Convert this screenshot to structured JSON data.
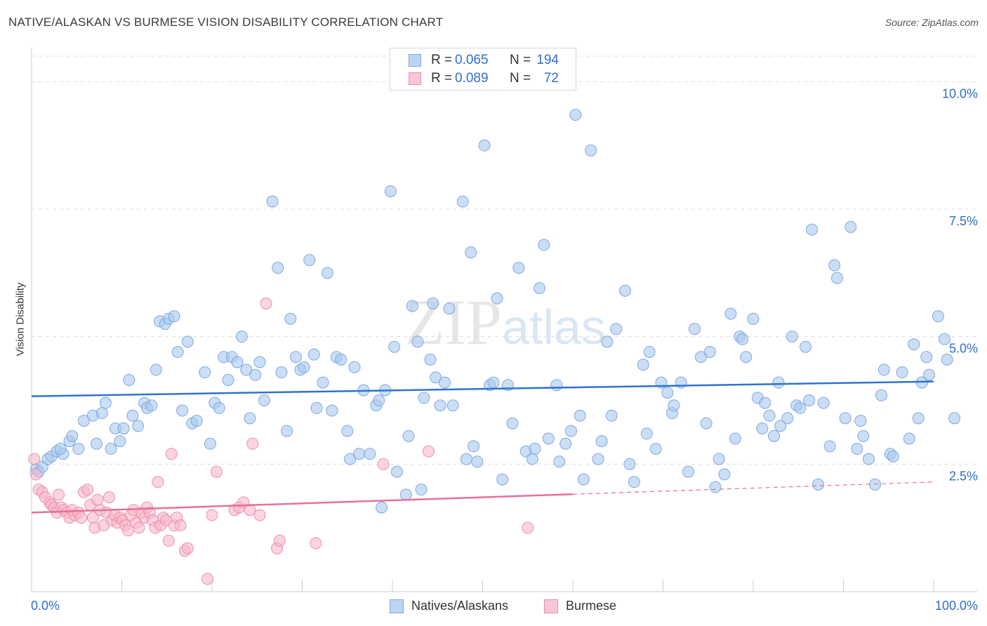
{
  "chart_data": {
    "type": "scatter",
    "title": "NATIVE/ALASKAN VS BURMESE VISION DISABILITY CORRELATION CHART",
    "source": "Source: ZipAtlas.com",
    "xlabel": "",
    "ylabel": "Vision Disability",
    "xlim": [
      0,
      100
    ],
    "ylim": [
      0,
      10.5
    ],
    "x_tick_labels": [
      "0.0%",
      "100.0%"
    ],
    "y_ticks": [
      2.5,
      5.0,
      7.5,
      10.0
    ],
    "y_tick_labels": [
      "2.5%",
      "5.0%",
      "7.5%",
      "10.0%"
    ],
    "grid": true,
    "watermark": "ZIPatlas",
    "colors": {
      "native_fill": "#a9c8ef",
      "native_stroke": "#7fa9df",
      "native_line": "#2f73cc",
      "burmese_fill": "#f6b7ca",
      "burmese_stroke": "#ec90ad",
      "burmese_line": "#e8709a",
      "value_text": "#2f6fc9",
      "grid": "#dcdcdc",
      "axis": "#cccccc"
    },
    "legend": [
      {
        "r_label": "R =",
        "r_value": "0.065",
        "n_label": "N =",
        "n_value": "194"
      },
      {
        "r_label": "R =",
        "r_value": "0.089",
        "n_label": "N =",
        "n_value": "72"
      }
    ],
    "series": [
      {
        "name": "Natives/Alaskans",
        "trend": {
          "x": [
            0,
            100
          ],
          "y": [
            3.83,
            4.12
          ],
          "dashed_from": null
        },
        "points": [
          [
            0.5,
            2.4
          ],
          [
            0.8,
            2.35
          ],
          [
            1.2,
            2.45
          ],
          [
            1.8,
            2.6
          ],
          [
            2.2,
            2.65
          ],
          [
            2.8,
            2.75
          ],
          [
            3.5,
            2.7
          ],
          [
            3.2,
            2.8
          ],
          [
            4.2,
            2.95
          ],
          [
            4.5,
            3.05
          ],
          [
            5.2,
            2.8
          ],
          [
            5.8,
            3.35
          ],
          [
            6.8,
            3.45
          ],
          [
            7.2,
            2.9
          ],
          [
            7.8,
            3.5
          ],
          [
            8.2,
            3.7
          ],
          [
            8.8,
            2.8
          ],
          [
            9.3,
            3.2
          ],
          [
            9.8,
            2.95
          ],
          [
            10.2,
            3.2
          ],
          [
            10.8,
            4.15
          ],
          [
            11.2,
            3.45
          ],
          [
            11.8,
            3.25
          ],
          [
            12.5,
            3.7
          ],
          [
            12.8,
            3.6
          ],
          [
            13.3,
            3.65
          ],
          [
            13.8,
            4.35
          ],
          [
            14.2,
            5.3
          ],
          [
            14.8,
            5.25
          ],
          [
            15.2,
            5.35
          ],
          [
            15.8,
            5.4
          ],
          [
            16.2,
            4.7
          ],
          [
            16.7,
            3.55
          ],
          [
            17.3,
            4.9
          ],
          [
            17.8,
            3.3
          ],
          [
            18.3,
            3.35
          ],
          [
            19.2,
            4.3
          ],
          [
            19.8,
            2.9
          ],
          [
            20.3,
            3.7
          ],
          [
            20.8,
            3.6
          ],
          [
            21.3,
            4.6
          ],
          [
            21.8,
            4.15
          ],
          [
            22.2,
            4.6
          ],
          [
            22.8,
            4.5
          ],
          [
            23.3,
            5.0
          ],
          [
            23.8,
            4.35
          ],
          [
            24.2,
            3.4
          ],
          [
            24.8,
            4.25
          ],
          [
            25.3,
            4.5
          ],
          [
            25.8,
            3.75
          ],
          [
            26.7,
            7.65
          ],
          [
            27.3,
            6.35
          ],
          [
            27.7,
            4.3
          ],
          [
            28.3,
            3.15
          ],
          [
            28.7,
            5.35
          ],
          [
            29.3,
            4.6
          ],
          [
            29.8,
            4.35
          ],
          [
            30.2,
            4.4
          ],
          [
            30.8,
            6.5
          ],
          [
            31.3,
            4.65
          ],
          [
            31.6,
            3.6
          ],
          [
            32.3,
            4.1
          ],
          [
            32.8,
            6.25
          ],
          [
            33.3,
            3.55
          ],
          [
            33.8,
            4.6
          ],
          [
            34.3,
            4.55
          ],
          [
            35.0,
            3.15
          ],
          [
            35.3,
            2.6
          ],
          [
            35.8,
            4.4
          ],
          [
            36.3,
            2.7
          ],
          [
            36.8,
            3.95
          ],
          [
            37.5,
            2.7
          ],
          [
            38.2,
            3.65
          ],
          [
            38.5,
            3.75
          ],
          [
            38.8,
            1.65
          ],
          [
            39.2,
            3.95
          ],
          [
            39.8,
            7.85
          ],
          [
            40.2,
            4.8
          ],
          [
            40.5,
            2.35
          ],
          [
            41.5,
            1.9
          ],
          [
            41.8,
            3.05
          ],
          [
            42.2,
            5.6
          ],
          [
            42.8,
            4.9
          ],
          [
            43.2,
            2.0
          ],
          [
            43.5,
            3.8
          ],
          [
            44.2,
            4.55
          ],
          [
            44.5,
            5.65
          ],
          [
            44.8,
            4.2
          ],
          [
            45.3,
            3.65
          ],
          [
            45.8,
            4.1
          ],
          [
            46.3,
            5.55
          ],
          [
            46.7,
            3.65
          ],
          [
            47.8,
            7.65
          ],
          [
            48.2,
            2.6
          ],
          [
            48.7,
            6.65
          ],
          [
            49.0,
            2.85
          ],
          [
            49.4,
            2.55
          ],
          [
            50.2,
            8.75
          ],
          [
            50.8,
            4.05
          ],
          [
            51.2,
            4.1
          ],
          [
            51.6,
            5.75
          ],
          [
            52.2,
            2.2
          ],
          [
            52.8,
            4.05
          ],
          [
            53.3,
            3.3
          ],
          [
            54.0,
            6.35
          ],
          [
            54.8,
            2.75
          ],
          [
            55.5,
            2.6
          ],
          [
            55.8,
            2.8
          ],
          [
            56.3,
            5.95
          ],
          [
            56.8,
            6.8
          ],
          [
            57.3,
            3.0
          ],
          [
            58.2,
            4.05
          ],
          [
            58.5,
            2.55
          ],
          [
            59.2,
            2.9
          ],
          [
            59.8,
            3.15
          ],
          [
            60.3,
            9.35
          ],
          [
            60.8,
            3.45
          ],
          [
            61.2,
            2.2
          ],
          [
            62.0,
            8.65
          ],
          [
            62.8,
            2.6
          ],
          [
            63.2,
            2.95
          ],
          [
            63.8,
            4.9
          ],
          [
            64.3,
            3.45
          ],
          [
            64.8,
            5.15
          ],
          [
            65.8,
            5.9
          ],
          [
            66.3,
            2.5
          ],
          [
            66.8,
            2.15
          ],
          [
            67.8,
            4.45
          ],
          [
            68.2,
            3.1
          ],
          [
            68.5,
            4.7
          ],
          [
            69.2,
            2.8
          ],
          [
            69.8,
            4.1
          ],
          [
            70.5,
            3.9
          ],
          [
            71.0,
            3.5
          ],
          [
            71.2,
            3.65
          ],
          [
            72.0,
            4.1
          ],
          [
            72.8,
            2.35
          ],
          [
            73.5,
            5.15
          ],
          [
            74.2,
            4.6
          ],
          [
            74.8,
            3.3
          ],
          [
            75.2,
            4.7
          ],
          [
            75.8,
            2.05
          ],
          [
            76.2,
            2.6
          ],
          [
            76.8,
            2.3
          ],
          [
            77.5,
            5.45
          ],
          [
            78.0,
            3.0
          ],
          [
            78.5,
            5.0
          ],
          [
            78.8,
            4.95
          ],
          [
            79.2,
            4.6
          ],
          [
            80.0,
            5.35
          ],
          [
            80.5,
            3.8
          ],
          [
            81.0,
            3.2
          ],
          [
            81.3,
            3.7
          ],
          [
            81.8,
            3.45
          ],
          [
            82.3,
            3.05
          ],
          [
            82.8,
            4.1
          ],
          [
            83.0,
            3.25
          ],
          [
            83.8,
            3.4
          ],
          [
            84.3,
            5.0
          ],
          [
            84.8,
            3.65
          ],
          [
            85.2,
            3.6
          ],
          [
            85.8,
            4.8
          ],
          [
            86.2,
            3.75
          ],
          [
            86.5,
            7.1
          ],
          [
            87.2,
            2.1
          ],
          [
            87.8,
            3.7
          ],
          [
            88.5,
            2.85
          ],
          [
            89.0,
            6.4
          ],
          [
            89.3,
            6.15
          ],
          [
            90.2,
            3.4
          ],
          [
            90.8,
            7.15
          ],
          [
            91.5,
            2.8
          ],
          [
            91.9,
            3.35
          ],
          [
            92.2,
            3.05
          ],
          [
            92.8,
            2.6
          ],
          [
            93.5,
            2.1
          ],
          [
            94.2,
            3.85
          ],
          [
            94.5,
            4.35
          ],
          [
            95.2,
            2.7
          ],
          [
            95.5,
            2.65
          ],
          [
            96.5,
            4.3
          ],
          [
            97.3,
            3.0
          ],
          [
            97.8,
            4.85
          ],
          [
            98.3,
            3.4
          ],
          [
            98.7,
            4.1
          ],
          [
            99.2,
            4.6
          ],
          [
            99.5,
            4.25
          ],
          [
            100.5,
            5.4
          ],
          [
            101.2,
            4.95
          ],
          [
            101.5,
            4.55
          ],
          [
            102.3,
            3.4
          ]
        ]
      },
      {
        "name": "Burmese",
        "trend": {
          "x": [
            0,
            100
          ],
          "y": [
            1.55,
            2.15
          ],
          "dashed_from": 60
        },
        "points": [
          [
            0.3,
            2.6
          ],
          [
            0.5,
            2.3
          ],
          [
            0.8,
            2.0
          ],
          [
            1.2,
            1.95
          ],
          [
            1.5,
            1.85
          ],
          [
            2.0,
            1.75
          ],
          [
            2.2,
            1.7
          ],
          [
            2.5,
            1.65
          ],
          [
            2.8,
            1.55
          ],
          [
            3.0,
            1.9
          ],
          [
            3.3,
            1.65
          ],
          [
            3.6,
            1.6
          ],
          [
            3.9,
            1.55
          ],
          [
            4.2,
            1.45
          ],
          [
            4.5,
            1.6
          ],
          [
            4.8,
            1.5
          ],
          [
            5.2,
            1.55
          ],
          [
            5.5,
            1.45
          ],
          [
            5.8,
            1.95
          ],
          [
            6.2,
            2.0
          ],
          [
            6.5,
            1.7
          ],
          [
            6.8,
            1.45
          ],
          [
            7.0,
            1.25
          ],
          [
            7.3,
            1.8
          ],
          [
            7.6,
            1.6
          ],
          [
            8.0,
            1.3
          ],
          [
            8.3,
            1.55
          ],
          [
            8.6,
            1.85
          ],
          [
            8.9,
            1.4
          ],
          [
            9.2,
            1.5
          ],
          [
            9.5,
            1.35
          ],
          [
            9.8,
            1.45
          ],
          [
            10.1,
            1.4
          ],
          [
            10.4,
            1.3
          ],
          [
            10.7,
            1.2
          ],
          [
            11.0,
            1.5
          ],
          [
            11.3,
            1.6
          ],
          [
            11.6,
            1.35
          ],
          [
            11.9,
            1.25
          ],
          [
            12.2,
            1.55
          ],
          [
            12.5,
            1.45
          ],
          [
            12.8,
            1.65
          ],
          [
            13.1,
            1.55
          ],
          [
            13.4,
            1.4
          ],
          [
            13.7,
            1.25
          ],
          [
            14.0,
            2.15
          ],
          [
            14.3,
            1.3
          ],
          [
            14.6,
            1.45
          ],
          [
            14.9,
            1.4
          ],
          [
            15.2,
            1.0
          ],
          [
            15.5,
            2.7
          ],
          [
            15.8,
            1.3
          ],
          [
            16.1,
            1.45
          ],
          [
            16.5,
            1.3
          ],
          [
            17.0,
            0.8
          ],
          [
            17.3,
            0.85
          ],
          [
            19.5,
            0.25
          ],
          [
            20.0,
            1.5
          ],
          [
            20.5,
            2.35
          ],
          [
            22.5,
            1.6
          ],
          [
            23.0,
            1.65
          ],
          [
            23.5,
            1.75
          ],
          [
            24.2,
            1.6
          ],
          [
            24.5,
            2.9
          ],
          [
            25.3,
            1.5
          ],
          [
            27.2,
            0.85
          ],
          [
            27.5,
            1.0
          ],
          [
            31.5,
            0.95
          ],
          [
            39.0,
            2.5
          ],
          [
            44.0,
            2.75
          ],
          [
            55.0,
            1.25
          ],
          [
            26.0,
            5.65
          ]
        ]
      }
    ]
  }
}
